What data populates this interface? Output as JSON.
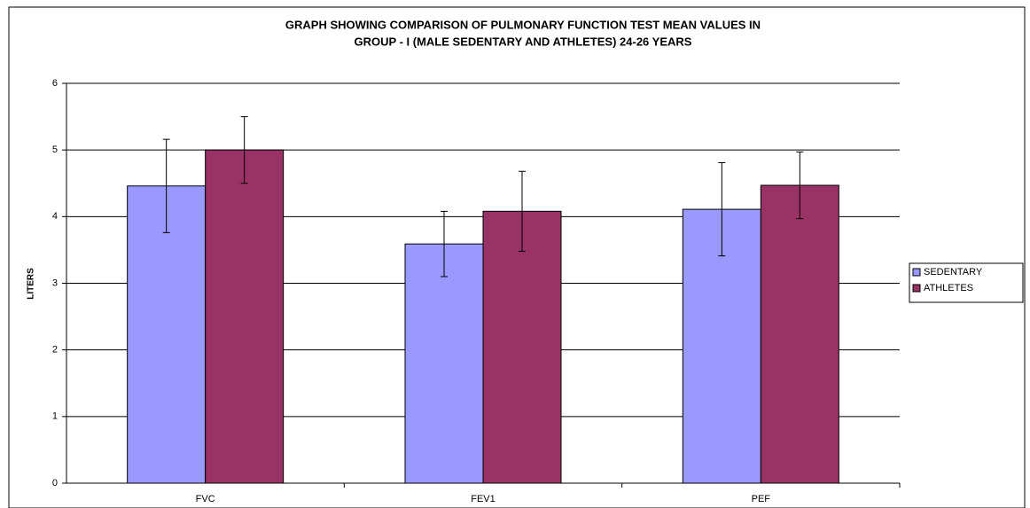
{
  "chart_data": {
    "type": "bar",
    "title": [
      "GRAPH SHOWING COMPARISON OF PULMONARY FUNCTION TEST MEAN VALUES IN",
      "GROUP - I (MALE SEDENTARY AND ATHLETES) 24-26 YEARS"
    ],
    "y_label": "LITERS",
    "categories": [
      "FVC",
      "FEV1",
      "PEF"
    ],
    "series": [
      {
        "name": "SEDENTARY",
        "color": "#9999ff",
        "values": [
          4.46,
          3.59,
          4.11
        ],
        "errors": [
          0.7,
          0.49,
          0.7
        ]
      },
      {
        "name": "ATHLETES",
        "color": "#993366",
        "values": [
          5.0,
          4.08,
          4.47
        ],
        "errors": [
          0.5,
          0.6,
          0.5
        ]
      }
    ],
    "ylim": [
      0,
      6
    ],
    "yticks": [
      0,
      1,
      2,
      3,
      4,
      5,
      6
    ],
    "grid": true,
    "legend": "right"
  }
}
